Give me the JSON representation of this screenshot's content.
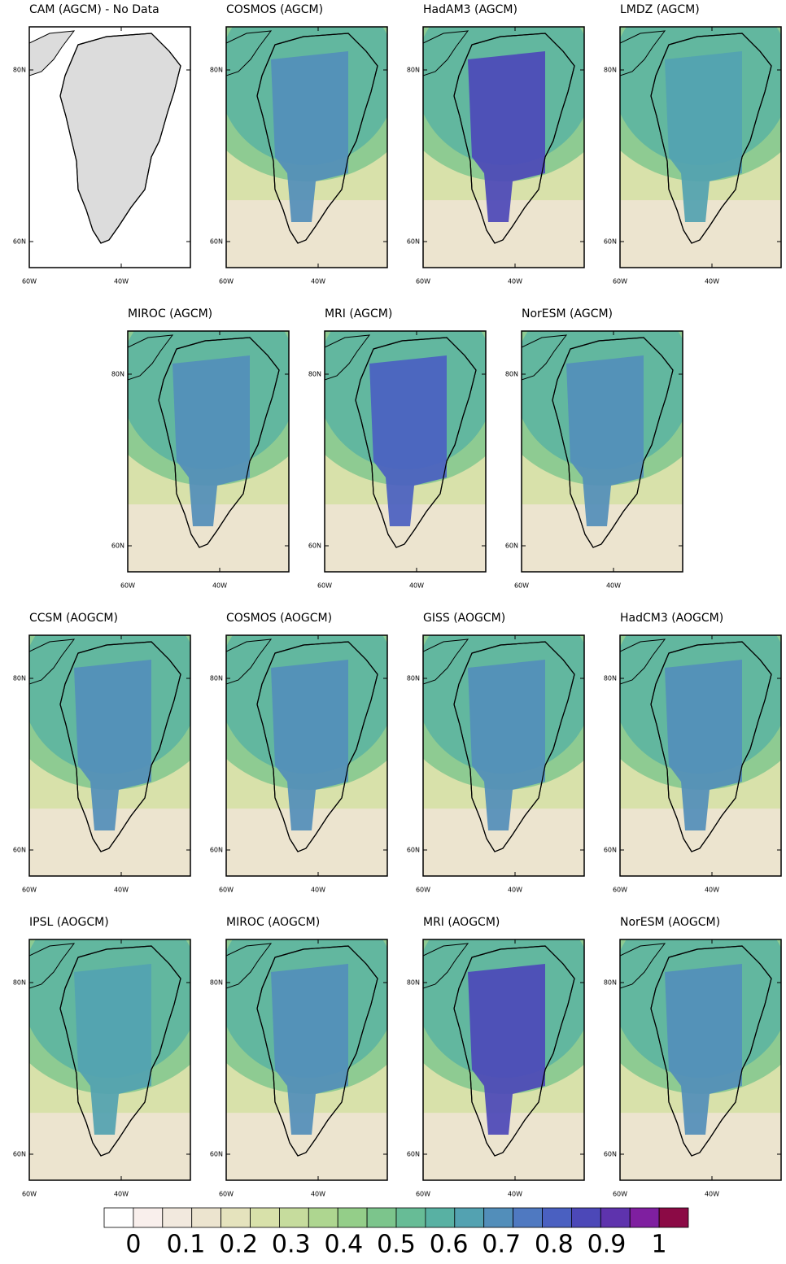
{
  "panels": [
    {
      "title": "CAM (AGCM) - No Data",
      "peak": null
    },
    {
      "title": "COSMOS (AGCM)",
      "peak": 0.68
    },
    {
      "title": "HadAM3 (AGCM)",
      "peak": 0.82
    },
    {
      "title": "LMDZ (AGCM)",
      "peak": 0.62
    },
    {
      "title": "MIROC (AGCM)",
      "peak": 0.68
    },
    {
      "title": "MRI (AGCM)",
      "peak": 0.78
    },
    {
      "title": "NorESM (AGCM)",
      "peak": 0.68
    },
    {
      "title": "CCSM (AOGCM)",
      "peak": 0.68
    },
    {
      "title": "COSMOS (AOGCM)",
      "peak": 0.68
    },
    {
      "title": "GISS (AOGCM)",
      "peak": 0.68
    },
    {
      "title": "HadCM3 (AOGCM)",
      "peak": 0.68
    },
    {
      "title": "IPSL (AOGCM)",
      "peak": 0.62
    },
    {
      "title": "MIROC (AOGCM)",
      "peak": 0.68
    },
    {
      "title": "MRI (AOGCM)",
      "peak": 0.83
    },
    {
      "title": "NorESM (AOGCM)",
      "peak": 0.68
    }
  ],
  "axis_labels": {
    "lat": [
      "80N",
      "60N"
    ],
    "lon": [
      "60W",
      "40W"
    ]
  },
  "colorbar": {
    "limits": [
      0,
      1
    ],
    "ticks": [
      0,
      0.1,
      0.2,
      0.3,
      0.4,
      0.5,
      0.6,
      0.7,
      0.8,
      0.9,
      1
    ],
    "colors": [
      "#ffffff",
      "#f9efec",
      "#f2e9de",
      "#ece4cf",
      "#e5e3bd",
      "#d8e1aa",
      "#c6dc9d",
      "#aed690",
      "#94ce89",
      "#7cc58c",
      "#67bc96",
      "#58b1a3",
      "#53a2b1",
      "#528eba",
      "#4f79c1",
      "#4a60c1",
      "#4c48b8",
      "#5e33ad",
      "#7f1fa0",
      "#8b0a45"
    ]
  }
}
